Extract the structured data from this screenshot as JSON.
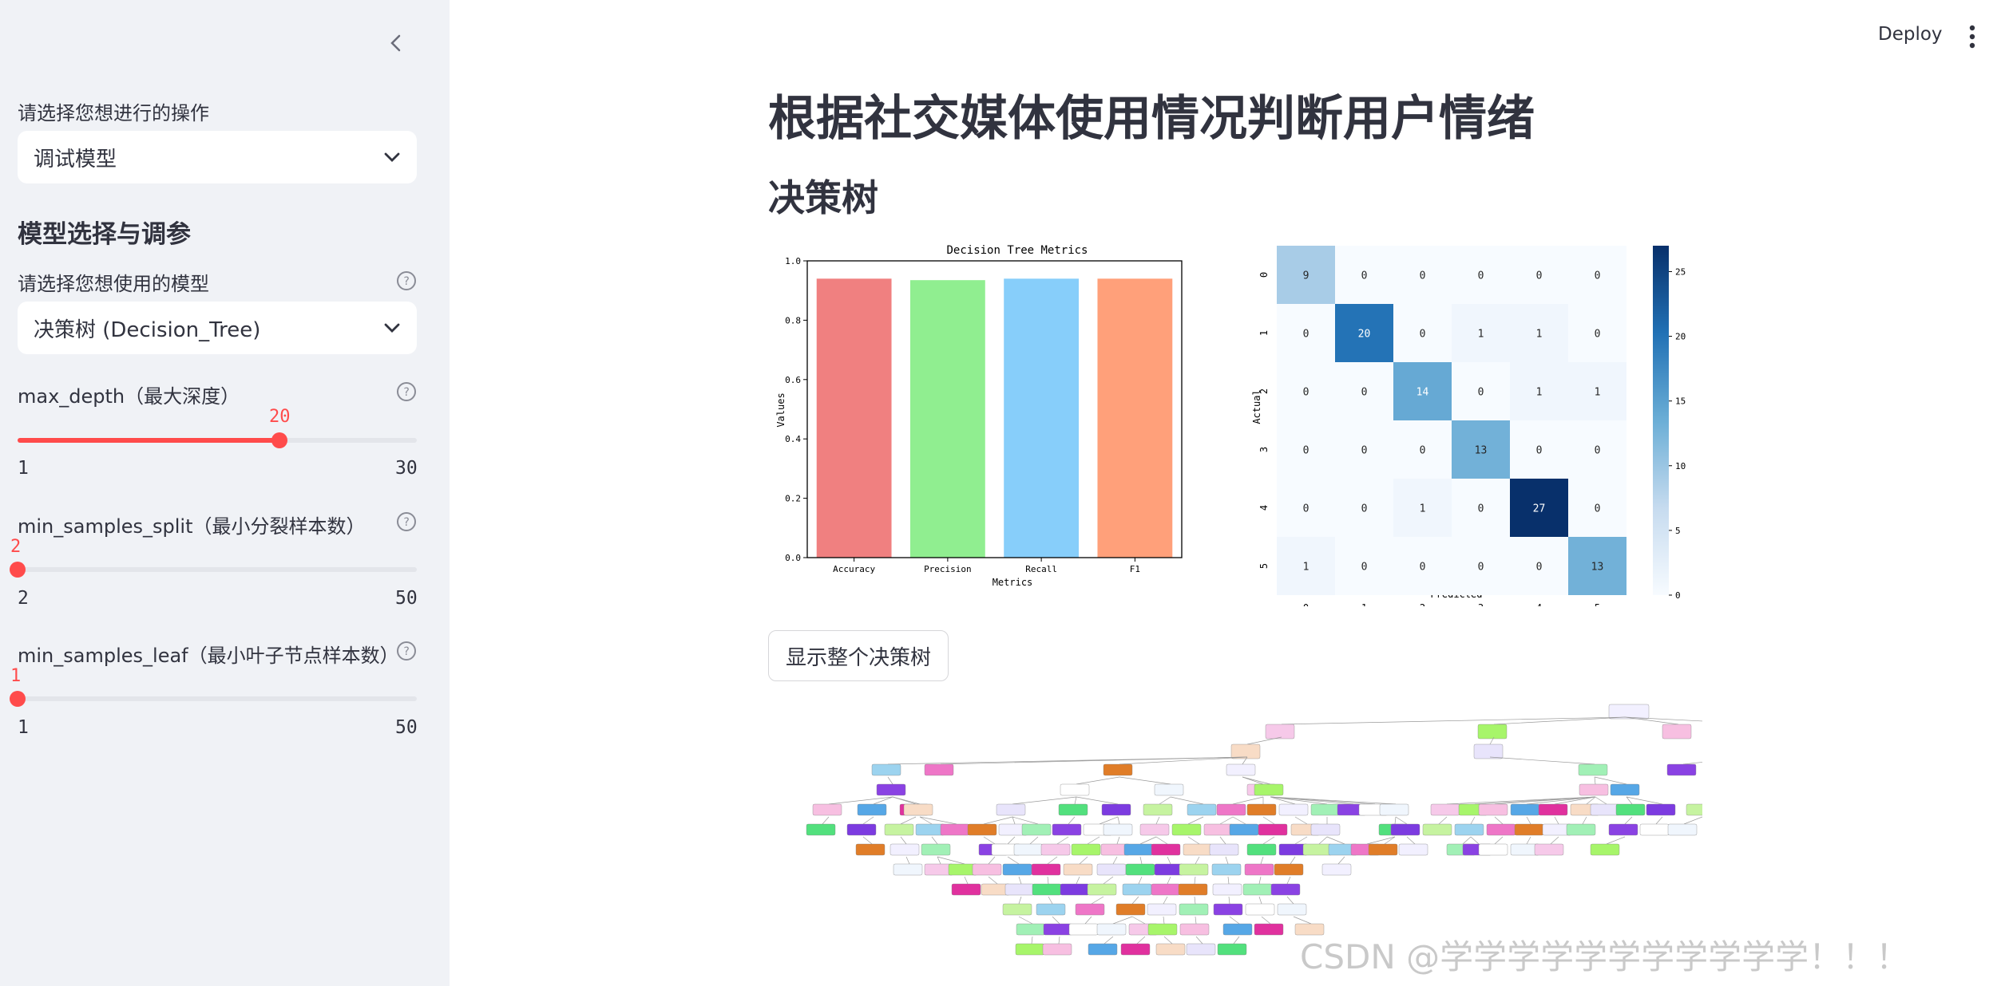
{
  "sidebar": {
    "operation": {
      "label": "请选择您想进行的操作",
      "value": "调试模型"
    },
    "section_title": "模型选择与调参",
    "model": {
      "label": "请选择您想使用的模型",
      "value": "决策树 (Decision_Tree)"
    },
    "max_depth": {
      "label": "max_depth（最大深度）",
      "value": "20",
      "min": "1",
      "max": "30",
      "fraction": 0.655
    },
    "min_samples_split": {
      "label": "min_samples_split（最小分裂样本数）",
      "value": "2",
      "min": "2",
      "max": "50",
      "fraction": 0.0
    },
    "min_samples_leaf": {
      "label": "min_samples_leaf（最小叶子节点样本数）",
      "value": "1",
      "min": "1",
      "max": "50",
      "fraction": 0.0
    }
  },
  "header": {
    "deploy": "Deploy"
  },
  "main": {
    "title": "根据社交媒体使用情况判断用户情绪",
    "subtitle": "决策树",
    "button": "显示整个决策树"
  },
  "watermark": "CSDN @学学学学学学学学学学学！！！",
  "colors": {
    "accent": "#ff4b4b",
    "sidebar_bg": "#f0f2f6"
  },
  "chart_data": [
    {
      "type": "bar",
      "title": "Decision Tree Metrics",
      "xlabel": "Metrics",
      "ylabel": "Values",
      "categories": [
        "Accuracy",
        "Precision",
        "Recall",
        "F1"
      ],
      "values": [
        0.94,
        0.935,
        0.94,
        0.94
      ],
      "colors": [
        "#f08080",
        "#90ee90",
        "#87cefa",
        "#ffa07a"
      ],
      "ylim": [
        0,
        1
      ],
      "yticks": [
        "0.0",
        "0.2",
        "0.4",
        "0.6",
        "0.8",
        "1.0"
      ]
    },
    {
      "type": "heatmap",
      "xlabel": "Predicted",
      "ylabel": "Actual",
      "labels": [
        "0",
        "1",
        "2",
        "3",
        "4",
        "5"
      ],
      "matrix": [
        [
          9,
          0,
          0,
          0,
          0,
          0
        ],
        [
          0,
          20,
          0,
          1,
          1,
          0
        ],
        [
          0,
          0,
          14,
          0,
          1,
          1
        ],
        [
          0,
          0,
          0,
          13,
          0,
          0
        ],
        [
          0,
          0,
          1,
          0,
          27,
          0
        ],
        [
          1,
          0,
          0,
          0,
          0,
          13
        ]
      ],
      "colorbar_ticks": [
        "0",
        "5",
        "10",
        "15",
        "20",
        "25"
      ],
      "vmax": 27
    }
  ]
}
